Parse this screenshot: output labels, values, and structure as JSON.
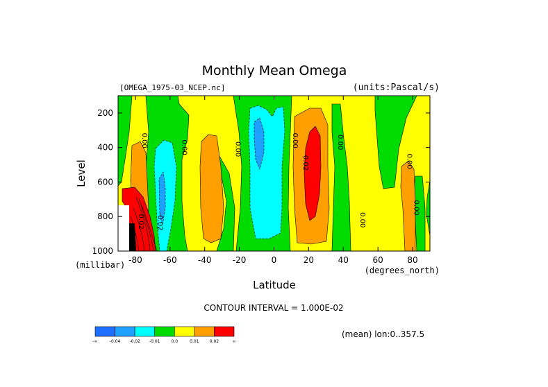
{
  "chart_data": {
    "type": "heatmap",
    "title": "Monthly Mean Omega",
    "file_label": "[OMEGA_1975-03_NCEP.nc]",
    "units_label": "(units:Pascal/s)",
    "xlabel": "Latitude",
    "x_units": "(degrees_north)",
    "ylabel": "Level",
    "y_units": "(millibar)",
    "xlim": [
      -90,
      90
    ],
    "ylim": [
      1000,
      100
    ],
    "x_ticks": [
      "-80",
      "-60",
      "-40",
      "-20",
      "0",
      "20",
      "40",
      "60",
      "80"
    ],
    "x_tick_values": [
      -80,
      -60,
      -40,
      -20,
      0,
      20,
      40,
      60,
      80
    ],
    "y_ticks": [
      "200",
      "400",
      "600",
      "800",
      "1000"
    ],
    "y_tick_values": [
      200,
      400,
      600,
      800,
      1000
    ],
    "contour_interval_text": "CONTOUR INTERVAL = 1.000E-02",
    "mean_note": "(mean) lon:0..357.5",
    "contour_labels": [
      {
        "text": "0.00",
        "lat": -76,
        "lev": 360
      },
      {
        "text": "0.00",
        "lat": -53,
        "lev": 400
      },
      {
        "text": "0.00",
        "lat": -22,
        "lev": 410
      },
      {
        "text": "0.00",
        "lat": 11,
        "lev": 360
      },
      {
        "text": "0.02",
        "lat": 17,
        "lev": 490
      },
      {
        "text": "0.00",
        "lat": 37,
        "lev": 370
      },
      {
        "text": "0.00",
        "lat": 50,
        "lev": 820
      },
      {
        "text": "0.00",
        "lat": 77,
        "lev": 480
      },
      {
        "text": "0.00",
        "lat": 81,
        "lev": 750
      },
      {
        "text": "0.02",
        "lat": -78,
        "lev": 830
      },
      {
        "text": "-0.02",
        "lat": -67,
        "lev": 830
      }
    ],
    "colorbar": {
      "colors": [
        "#1e6eff",
        "#1ea0ff",
        "#00ffff",
        "#00dc00",
        "#ffff00",
        "#ffa000",
        "#ff0000"
      ],
      "labels": [
        "-∞",
        "-0.04",
        "-0.02",
        "-0.01",
        "0.0",
        "0.01",
        "0.02",
        "∞"
      ]
    },
    "regions": [
      {
        "name": "orange-south-polar-column",
        "level": 0.01,
        "lat": [
          -84,
          -72
        ],
        "lev": [
          290,
          850
        ]
      },
      {
        "name": "red-south-polar-low",
        "level": 0.02,
        "lat": [
          -88,
          -68
        ],
        "lev": [
          640,
          1000
        ]
      },
      {
        "name": "cyan-south-subpolar",
        "level": -0.02,
        "lat": [
          -71,
          -56
        ],
        "lev": [
          350,
          1000
        ]
      },
      {
        "name": "blue-south-subpolar-core",
        "level": -0.04,
        "lat": [
          -66,
          -61
        ],
        "lev": [
          560,
          880
        ]
      },
      {
        "name": "orange-south-midlatitude",
        "level": 0.01,
        "lat": [
          -41,
          -27
        ],
        "lev": [
          320,
          950
        ]
      },
      {
        "name": "cyan-equatorial",
        "level": -0.02,
        "lat": [
          -17,
          7
        ],
        "lev": [
          120,
          940
        ]
      },
      {
        "name": "blue-equatorial-core",
        "level": -0.04,
        "lat": [
          -11,
          -5
        ],
        "lev": [
          200,
          520
        ]
      },
      {
        "name": "orange-north-subtropical",
        "level": 0.01,
        "lat": [
          10,
          32
        ],
        "lev": [
          120,
          950
        ]
      },
      {
        "name": "red-north-subtropical-core",
        "level": 0.02,
        "lat": [
          14,
          28
        ],
        "lev": [
          260,
          830
        ]
      },
      {
        "name": "green-north-high-lat",
        "level": -0.01,
        "lat": [
          45,
          66
        ],
        "lev": [
          120,
          700
        ]
      },
      {
        "name": "orange-north-polar",
        "level": 0.01,
        "lat": [
          71,
          80
        ],
        "lev": [
          410,
          1000
        ]
      },
      {
        "name": "green-north-polar",
        "level": -0.01,
        "lat": [
          81,
          87
        ],
        "lev": [
          540,
          1000
        ]
      }
    ],
    "grid": false,
    "legend": "bottom-left colorbar"
  }
}
